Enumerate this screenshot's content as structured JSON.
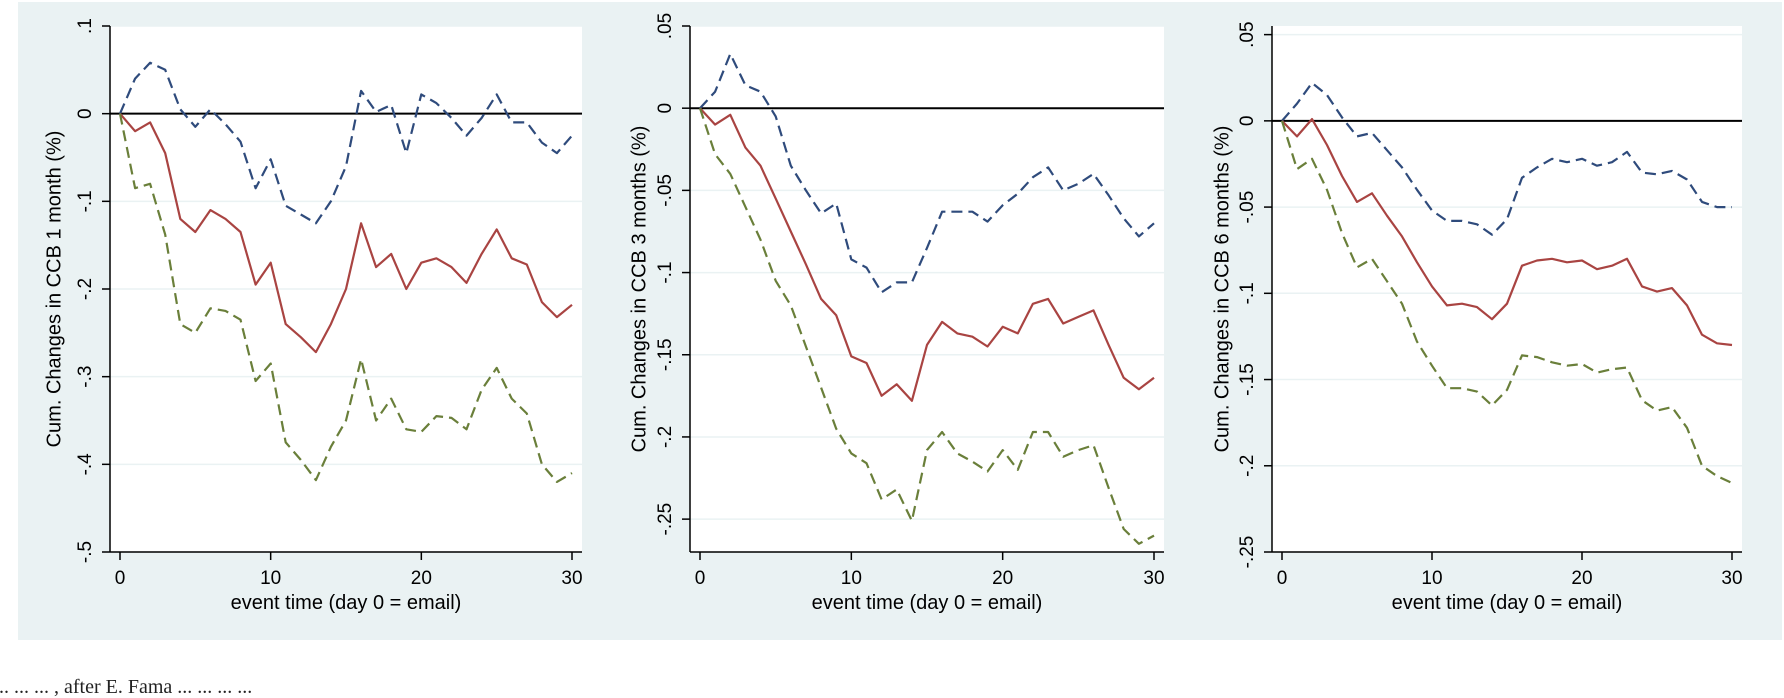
{
  "figure": {
    "background": "#eaf2f3",
    "plot_background": "#ffffff",
    "grid_color": "#eaf2f3",
    "zero_line_color": "#000000"
  },
  "caption": "... ... ... , after E. Fama ... ... ... ...",
  "chart_data": [
    {
      "type": "line",
      "xlabel": "event time (day 0 = email)",
      "ylabel": "Cum. Changes in CCB 1 month (%)",
      "xlim": [
        0,
        30
      ],
      "ylim": [
        -0.5,
        0.1
      ],
      "xticks": [
        0,
        10,
        20,
        30
      ],
      "xtick_labels": [
        "0",
        "10",
        "20",
        "30"
      ],
      "yticks": [
        0.1,
        0,
        -0.1,
        -0.2,
        -0.3,
        -0.4,
        -0.5
      ],
      "ytick_labels": [
        ".1",
        "0",
        "-.1",
        "-.2",
        "-.3",
        "-.4",
        "-.5"
      ],
      "grid": true,
      "x": [
        0,
        1,
        2,
        3,
        4,
        5,
        6,
        7,
        8,
        9,
        10,
        11,
        12,
        13,
        14,
        15,
        16,
        17,
        18,
        19,
        20,
        21,
        22,
        23,
        24,
        25,
        26,
        27,
        28,
        29,
        30
      ],
      "series": [
        {
          "color": "#2f4b7c",
          "style": "dashed",
          "values": [
            0,
            0.04,
            0.058,
            0.05,
            0.005,
            -0.015,
            0.005,
            -0.012,
            -0.032,
            -0.085,
            -0.052,
            -0.105,
            -0.115,
            -0.125,
            -0.1,
            -0.06,
            0.026,
            0.002,
            0.01,
            -0.045,
            0.022,
            0.012,
            -0.005,
            -0.025,
            -0.005,
            0.022,
            -0.01,
            -0.01,
            -0.033,
            -0.045,
            -0.025
          ]
        },
        {
          "color": "#a94442",
          "style": "solid",
          "values": [
            0,
            -0.02,
            -0.01,
            -0.045,
            -0.12,
            -0.135,
            -0.11,
            -0.12,
            -0.135,
            -0.195,
            -0.17,
            -0.24,
            -0.255,
            -0.272,
            -0.24,
            -0.2,
            -0.125,
            -0.175,
            -0.16,
            -0.2,
            -0.17,
            -0.165,
            -0.175,
            -0.193,
            -0.16,
            -0.132,
            -0.165,
            -0.172,
            -0.215,
            -0.232,
            -0.218
          ]
        },
        {
          "color": "#6a7f3a",
          "style": "dashed",
          "values": [
            0,
            -0.085,
            -0.08,
            -0.138,
            -0.24,
            -0.25,
            -0.222,
            -0.225,
            -0.235,
            -0.305,
            -0.285,
            -0.375,
            -0.395,
            -0.418,
            -0.38,
            -0.35,
            -0.28,
            -0.35,
            -0.325,
            -0.36,
            -0.363,
            -0.345,
            -0.347,
            -0.36,
            -0.315,
            -0.29,
            -0.325,
            -0.342,
            -0.4,
            -0.42,
            -0.41
          ]
        }
      ]
    },
    {
      "type": "line",
      "xlabel": "event time (day 0 = email)",
      "ylabel": "Cum. Changes in CCB 3 months (%)",
      "xlim": [
        0,
        30
      ],
      "ylim": [
        -0.27,
        0.05
      ],
      "xticks": [
        0,
        10,
        20,
        30
      ],
      "xtick_labels": [
        "0",
        "10",
        "20",
        "30"
      ],
      "yticks": [
        0.05,
        0,
        -0.05,
        -0.1,
        -0.15,
        -0.2,
        -0.25
      ],
      "ytick_labels": [
        ".05",
        "0",
        "-.05",
        "-.1",
        "-.15",
        "-.2",
        "-.25"
      ],
      "grid": true,
      "x": [
        0,
        1,
        2,
        3,
        4,
        5,
        6,
        7,
        8,
        9,
        10,
        11,
        12,
        13,
        14,
        15,
        16,
        17,
        18,
        19,
        20,
        21,
        22,
        23,
        24,
        25,
        26,
        27,
        28,
        29,
        30
      ],
      "series": [
        {
          "color": "#2f4b7c",
          "style": "dashed",
          "values": [
            0,
            0.01,
            0.033,
            0.014,
            0.01,
            -0.005,
            -0.035,
            -0.05,
            -0.064,
            -0.058,
            -0.092,
            -0.097,
            -0.112,
            -0.106,
            -0.106,
            -0.085,
            -0.063,
            -0.063,
            -0.063,
            -0.069,
            -0.059,
            -0.052,
            -0.042,
            -0.036,
            -0.05,
            -0.046,
            -0.04,
            -0.053,
            -0.067,
            -0.078,
            -0.07
          ]
        },
        {
          "color": "#a94442",
          "style": "solid",
          "values": [
            0,
            -0.01,
            -0.004,
            -0.024,
            -0.035,
            -0.055,
            -0.075,
            -0.095,
            -0.116,
            -0.126,
            -0.151,
            -0.155,
            -0.175,
            -0.168,
            -0.178,
            -0.144,
            -0.13,
            -0.137,
            -0.139,
            -0.145,
            -0.133,
            -0.137,
            -0.119,
            -0.116,
            -0.131,
            -0.127,
            -0.123,
            -0.144,
            -0.164,
            -0.171,
            -0.164
          ]
        },
        {
          "color": "#6a7f3a",
          "style": "dashed",
          "values": [
            0,
            -0.028,
            -0.04,
            -0.06,
            -0.08,
            -0.105,
            -0.12,
            -0.145,
            -0.17,
            -0.195,
            -0.21,
            -0.216,
            -0.238,
            -0.232,
            -0.251,
            -0.208,
            -0.197,
            -0.21,
            -0.215,
            -0.221,
            -0.208,
            -0.22,
            -0.197,
            -0.197,
            -0.212,
            -0.208,
            -0.205,
            -0.231,
            -0.256,
            -0.265,
            -0.26
          ]
        }
      ]
    },
    {
      "type": "line",
      "xlabel": "event time (day 0 = email)",
      "ylabel": "Cum. Changes in CCB 6 months (%)",
      "xlim": [
        0,
        30
      ],
      "ylim": [
        -0.25,
        0.055
      ],
      "xticks": [
        0,
        10,
        20,
        30
      ],
      "xtick_labels": [
        "0",
        "10",
        "20",
        "30"
      ],
      "yticks": [
        0.05,
        0,
        -0.05,
        -0.1,
        -0.15,
        -0.2,
        -0.25
      ],
      "ytick_labels": [
        ".05",
        "0",
        "-.05",
        "-.1",
        "-.15",
        "-.2",
        "-.25"
      ],
      "grid": true,
      "x": [
        0,
        1,
        2,
        3,
        4,
        5,
        6,
        7,
        8,
        9,
        10,
        11,
        12,
        13,
        14,
        15,
        16,
        17,
        18,
        19,
        20,
        21,
        22,
        23,
        24,
        25,
        26,
        27,
        28,
        29,
        30
      ],
      "series": [
        {
          "color": "#2f4b7c",
          "style": "dashed",
          "values": [
            0,
            0.01,
            0.022,
            0.015,
            0.002,
            -0.009,
            -0.007,
            -0.017,
            -0.027,
            -0.04,
            -0.052,
            -0.058,
            -0.058,
            -0.06,
            -0.066,
            -0.057,
            -0.033,
            -0.027,
            -0.022,
            -0.024,
            -0.022,
            -0.026,
            -0.024,
            -0.018,
            -0.03,
            -0.031,
            -0.029,
            -0.034,
            -0.047,
            -0.05,
            -0.05
          ]
        },
        {
          "color": "#a94442",
          "style": "solid",
          "values": [
            0,
            -0.009,
            0.001,
            -0.014,
            -0.032,
            -0.047,
            -0.042,
            -0.055,
            -0.067,
            -0.082,
            -0.096,
            -0.107,
            -0.106,
            -0.108,
            -0.115,
            -0.106,
            -0.084,
            -0.081,
            -0.08,
            -0.082,
            -0.081,
            -0.086,
            -0.084,
            -0.08,
            -0.096,
            -0.099,
            -0.097,
            -0.107,
            -0.124,
            -0.129,
            -0.13
          ]
        },
        {
          "color": "#6a7f3a",
          "style": "dashed",
          "values": [
            0,
            -0.028,
            -0.022,
            -0.04,
            -0.065,
            -0.085,
            -0.08,
            -0.093,
            -0.106,
            -0.128,
            -0.142,
            -0.155,
            -0.155,
            -0.157,
            -0.165,
            -0.156,
            -0.136,
            -0.137,
            -0.14,
            -0.142,
            -0.141,
            -0.146,
            -0.144,
            -0.143,
            -0.162,
            -0.168,
            -0.166,
            -0.178,
            -0.2,
            -0.206,
            -0.21
          ]
        }
      ]
    }
  ]
}
